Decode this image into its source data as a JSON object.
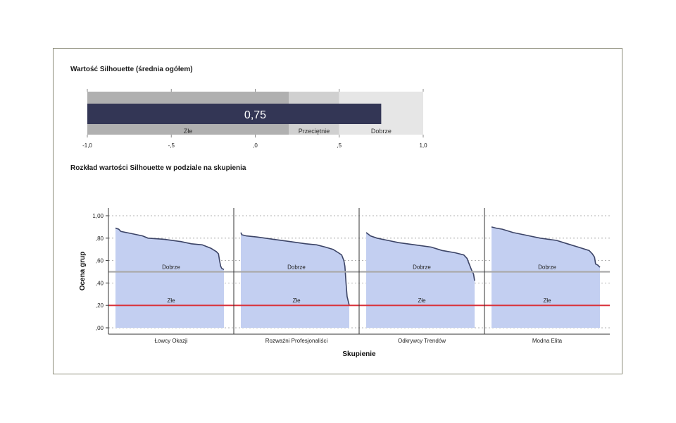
{
  "section1_title": "Wartość Silhouette (średnia ogółem)",
  "section2_title": "Rozkład wartości Silhouette w podziale na skupienia",
  "chart_data": [
    {
      "type": "bar",
      "title": "Wartość Silhouette (średnia ogółem)",
      "value": 0.75,
      "value_label": "0,75",
      "xlim": [
        -1.0,
        1.0
      ],
      "ticks": [
        -1.0,
        -0.5,
        0.0,
        0.5,
        1.0
      ],
      "tick_labels": [
        "-1,0",
        "-,5",
        ",0",
        ",5",
        "1,0"
      ],
      "bands": [
        {
          "label": "Złe",
          "from": -1.0,
          "to": 0.2,
          "color": "#b0b0b0"
        },
        {
          "label": "Przeciętnie",
          "from": 0.2,
          "to": 0.5,
          "color": "#d0d0d0"
        },
        {
          "label": "Dobrze",
          "from": 0.5,
          "to": 1.0,
          "color": "#e6e6e6"
        }
      ],
      "bar_color": "#333655"
    },
    {
      "type": "area",
      "title": "Rozkład wartości Silhouette w podziale na skupienia",
      "xlabel": "Skupienie",
      "ylabel": "Ocena grup",
      "ylim": [
        0,
        1.0
      ],
      "yticks": [
        0.0,
        0.2,
        0.4,
        0.6,
        0.8,
        1.0
      ],
      "ytick_labels": [
        ",00",
        ",20",
        ",40",
        ",60",
        ",80",
        "1,00"
      ],
      "reference_lines": [
        {
          "label": "Dobrze",
          "value": 0.5,
          "color": "#aaaaaa"
        },
        {
          "label": "Złe",
          "value": 0.2,
          "color": "#d9363e"
        }
      ],
      "series": [
        {
          "name": "Łowcy Okazji",
          "points": [
            [
              0,
              0.89
            ],
            [
              0.03,
              0.88
            ],
            [
              0.05,
              0.86
            ],
            [
              0.15,
              0.84
            ],
            [
              0.25,
              0.82
            ],
            [
              0.3,
              0.8
            ],
            [
              0.45,
              0.79
            ],
            [
              0.6,
              0.77
            ],
            [
              0.7,
              0.75
            ],
            [
              0.8,
              0.74
            ],
            [
              0.88,
              0.71
            ],
            [
              0.93,
              0.68
            ],
            [
              0.95,
              0.66
            ],
            [
              0.96,
              0.6
            ],
            [
              0.97,
              0.55
            ],
            [
              0.98,
              0.53
            ],
            [
              1.0,
              0.52
            ]
          ]
        },
        {
          "name": "Rozważni Profesjonaliści",
          "points": [
            [
              0,
              0.85
            ],
            [
              0.01,
              0.83
            ],
            [
              0.05,
              0.82
            ],
            [
              0.15,
              0.81
            ],
            [
              0.3,
              0.79
            ],
            [
              0.45,
              0.77
            ],
            [
              0.6,
              0.75
            ],
            [
              0.7,
              0.74
            ],
            [
              0.78,
              0.72
            ],
            [
              0.85,
              0.7
            ],
            [
              0.9,
              0.67
            ],
            [
              0.93,
              0.65
            ],
            [
              0.95,
              0.6
            ],
            [
              0.96,
              0.55
            ],
            [
              0.97,
              0.4
            ],
            [
              0.98,
              0.28
            ],
            [
              1.0,
              0.2
            ]
          ]
        },
        {
          "name": "Odkrywcy Trendów",
          "points": [
            [
              0,
              0.85
            ],
            [
              0.04,
              0.82
            ],
            [
              0.1,
              0.8
            ],
            [
              0.2,
              0.78
            ],
            [
              0.3,
              0.76
            ],
            [
              0.45,
              0.74
            ],
            [
              0.6,
              0.72
            ],
            [
              0.7,
              0.69
            ],
            [
              0.82,
              0.67
            ],
            [
              0.9,
              0.65
            ],
            [
              0.93,
              0.62
            ],
            [
              0.95,
              0.57
            ],
            [
              0.97,
              0.52
            ],
            [
              0.99,
              0.48
            ],
            [
              1.0,
              0.42
            ]
          ]
        },
        {
          "name": "Modna Elita",
          "points": [
            [
              0,
              0.9
            ],
            [
              0.04,
              0.89
            ],
            [
              0.1,
              0.88
            ],
            [
              0.2,
              0.85
            ],
            [
              0.3,
              0.83
            ],
            [
              0.45,
              0.8
            ],
            [
              0.6,
              0.78
            ],
            [
              0.7,
              0.75
            ],
            [
              0.8,
              0.72
            ],
            [
              0.9,
              0.69
            ],
            [
              0.93,
              0.66
            ],
            [
              0.95,
              0.63
            ],
            [
              0.96,
              0.57
            ],
            [
              0.98,
              0.56
            ],
            [
              1.0,
              0.54
            ]
          ]
        }
      ]
    }
  ]
}
